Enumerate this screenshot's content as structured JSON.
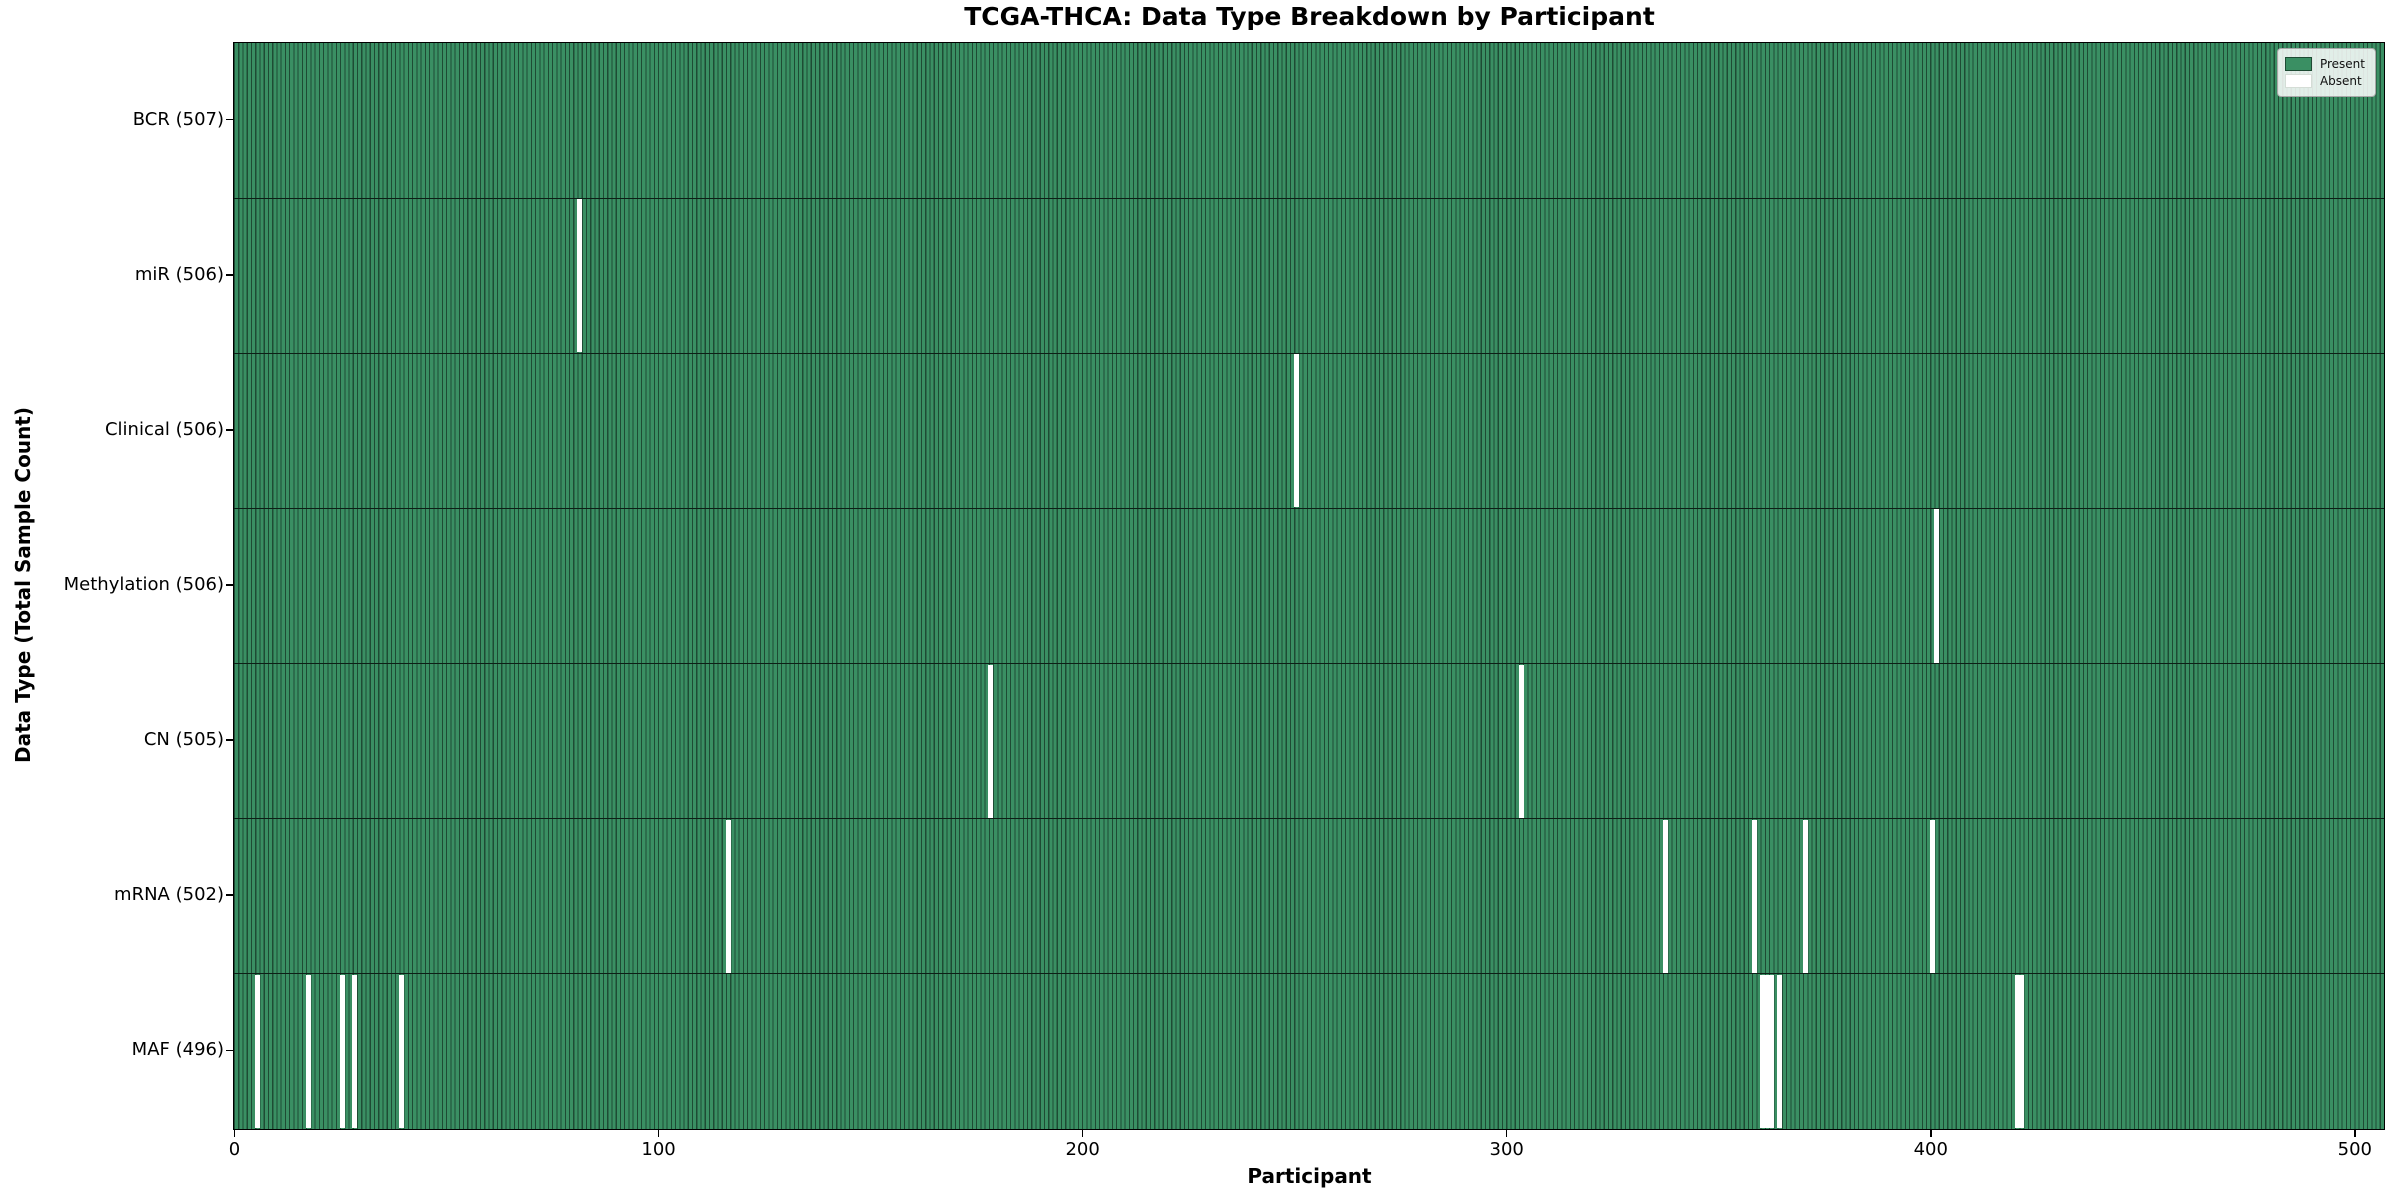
{
  "chart_data": {
    "type": "heatmap",
    "title": "TCGA-THCA: Data Type Breakdown by Participant",
    "xlabel": "Participant",
    "ylabel": "Data Type (Total Sample Count)",
    "x_ticks": [
      0,
      100,
      200,
      300,
      400,
      500
    ],
    "xlim": [
      0,
      507
    ],
    "total_participants": 507,
    "grid": "off",
    "legend_position": "upper right",
    "legend": {
      "entries": [
        {
          "label": "Present",
          "color": "#3a8f63"
        },
        {
          "label": "Absent",
          "color": "#ffffff"
        }
      ]
    },
    "colors": {
      "present_fill": "#3a8f63",
      "cell_edge": "#1e4b34",
      "absent_fill": "#ffffff",
      "row_separator": "#0d1f16"
    },
    "rows": [
      {
        "data_type": "BCR",
        "label": "BCR (507)",
        "count": 507,
        "absent_participants": []
      },
      {
        "data_type": "miR",
        "label": "miR (506)",
        "count": 506,
        "absent_participants": [
          81
        ]
      },
      {
        "data_type": "Clinical",
        "label": "Clinical (506)",
        "count": 506,
        "absent_participants": [
          250
        ]
      },
      {
        "data_type": "Methylation",
        "label": "Methylation (506)",
        "count": 506,
        "absent_participants": [
          401
        ]
      },
      {
        "data_type": "CN",
        "label": "CN (505)",
        "count": 505,
        "absent_participants": [
          178,
          303
        ]
      },
      {
        "data_type": "mRNA",
        "label": "mRNA (502)",
        "count": 502,
        "absent_participants": [
          116,
          337,
          358,
          370,
          400
        ]
      },
      {
        "data_type": "MAF",
        "label": "MAF (496)",
        "count": 496,
        "absent_participants": [
          5,
          17,
          25,
          28,
          39,
          360,
          361,
          362,
          364,
          420,
          421
        ]
      }
    ]
  }
}
